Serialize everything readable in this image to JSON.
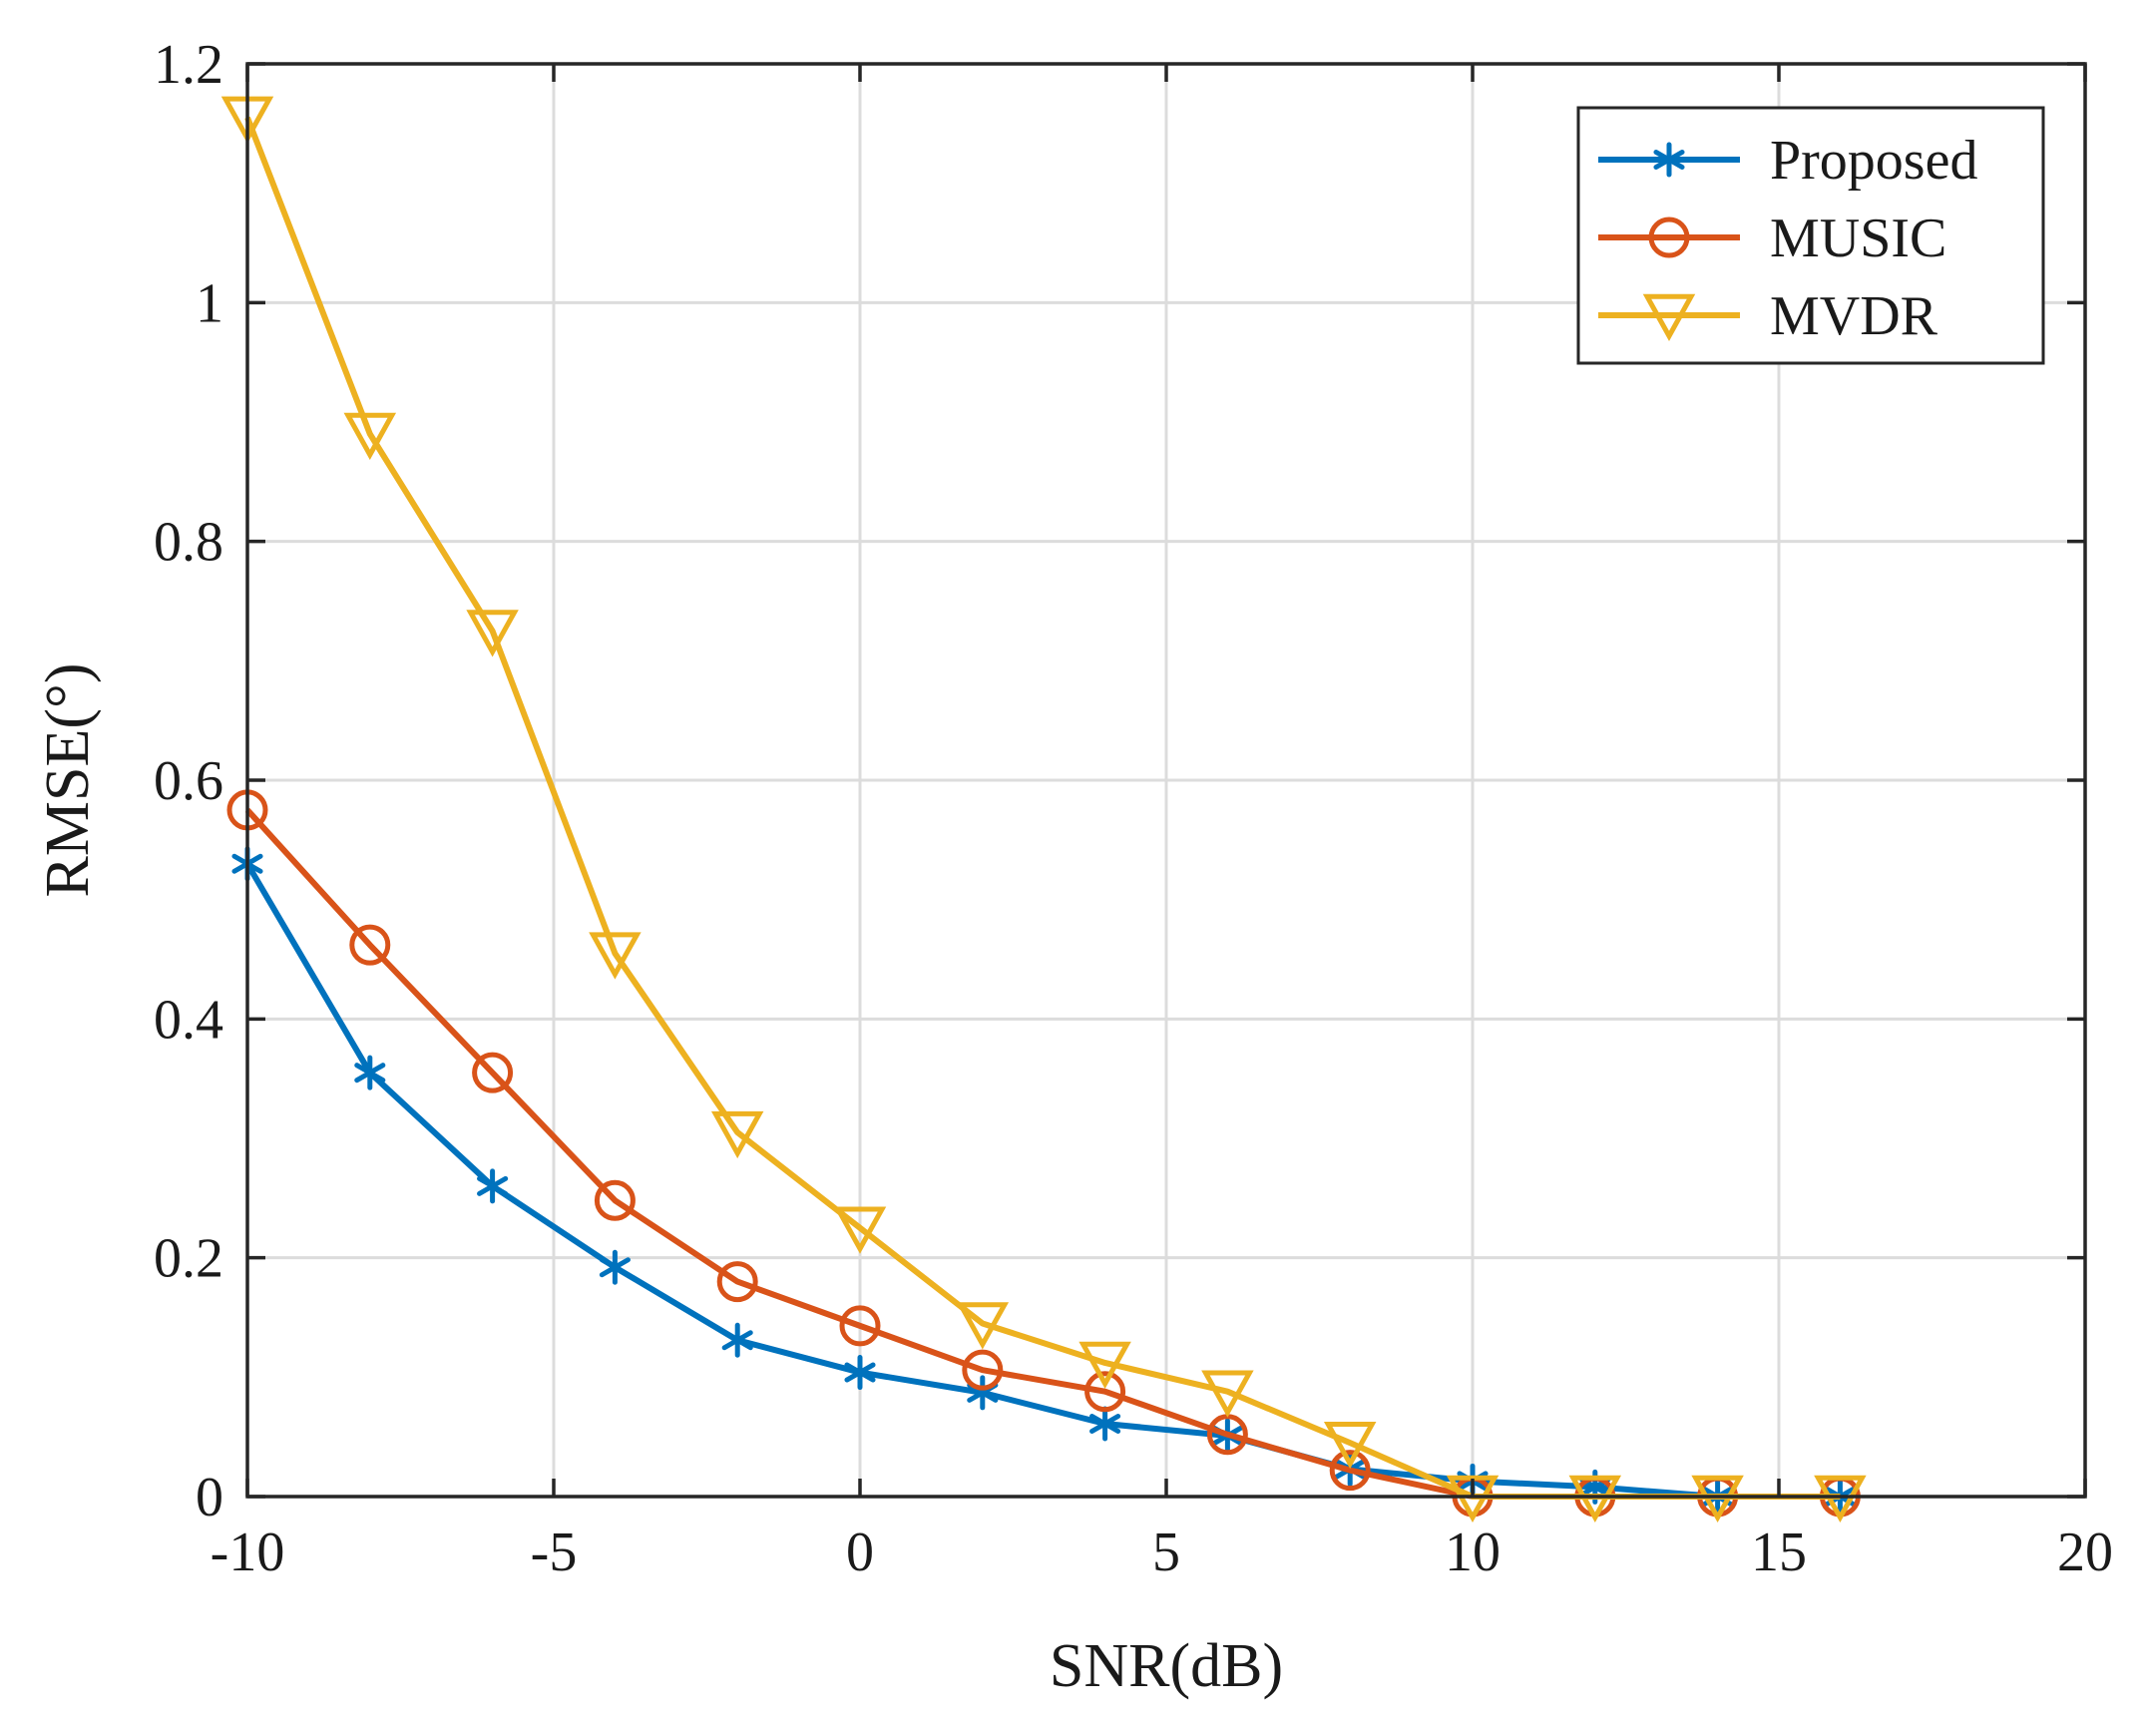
{
  "chart_data": {
    "type": "line",
    "title": "",
    "xlabel": "SNR(dB)",
    "ylabel": "RMSE(°)",
    "xlim": [
      -10,
      20
    ],
    "ylim": [
      0,
      1.2
    ],
    "x_ticks": [
      -10,
      -5,
      0,
      5,
      10,
      15,
      20
    ],
    "x_tick_labels": [
      "-10",
      "-5",
      "0",
      "5",
      "10",
      "15",
      "20"
    ],
    "y_ticks": [
      0,
      0.2,
      0.4,
      0.6,
      0.8,
      1.0,
      1.2
    ],
    "y_tick_labels": [
      "0",
      "0.2",
      "0.4",
      "0.6",
      "0.8",
      "1",
      "1.2"
    ],
    "grid": true,
    "legend_position": "top-right",
    "x": [
      -10,
      -8,
      -6,
      -4,
      -2,
      0,
      2,
      4,
      6,
      8,
      10,
      12,
      14,
      16
    ],
    "series": [
      {
        "name": "Proposed",
        "color": "#0072BD",
        "marker": "asterisk",
        "values": [
          0.53,
          0.355,
          0.26,
          0.192,
          0.131,
          0.104,
          0.087,
          0.061,
          0.051,
          0.023,
          0.013,
          0.008,
          0.0,
          0.0
        ]
      },
      {
        "name": "MUSIC",
        "color": "#D95319",
        "marker": "circle",
        "values": [
          0.575,
          0.462,
          0.355,
          0.248,
          0.18,
          0.143,
          0.106,
          0.088,
          0.052,
          0.022,
          0.0,
          0.0,
          0.0,
          0.0
        ]
      },
      {
        "name": "MVDR",
        "color": "#EDB120",
        "marker": "triangle-down",
        "values": [
          1.155,
          0.89,
          0.725,
          0.455,
          0.305,
          0.225,
          0.145,
          0.112,
          0.088,
          0.045,
          0.0,
          0.0,
          0.0,
          0.0
        ]
      }
    ]
  }
}
